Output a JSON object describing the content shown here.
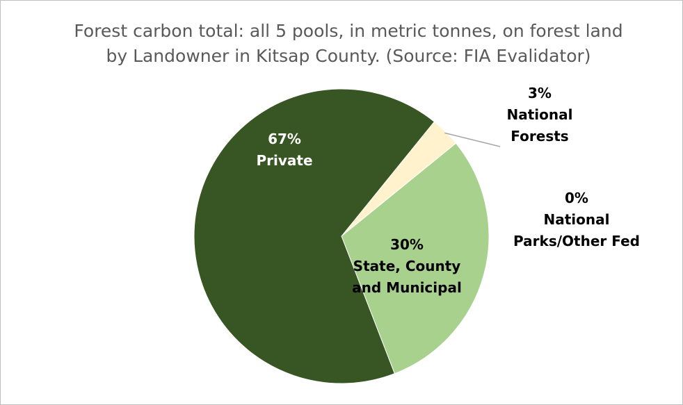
{
  "chart_data": {
    "type": "pie",
    "title_lines": [
      "Forest carbon total: all 5 pools, in metric tonnes, on forest land",
      "by Landowner in Kitsap County. (Source: FIA Evalidator)"
    ],
    "start_angle_deg": 51,
    "slices": [
      {
        "key": "national-forests",
        "name_lines": [
          "National",
          "Forests"
        ],
        "pct_label": "3%",
        "value": 3.3,
        "color": "#fff2cc"
      },
      {
        "key": "state-county-municipal",
        "name_lines": [
          "State, County",
          "and Municipal"
        ],
        "pct_label": "30%",
        "value": 30,
        "color": "#a9d18e"
      },
      {
        "key": "national-parks-other-fed",
        "name_lines": [
          "National",
          "Parks/Other Fed"
        ],
        "pct_label": "0%",
        "value": 0,
        "color": "#7f7f7f"
      },
      {
        "key": "private",
        "name_lines": [
          "Private"
        ],
        "pct_label": "67%",
        "value": 66.7,
        "color": "#375623"
      }
    ],
    "label_colors": {
      "inside_dark": "#ffffff",
      "inside_light": "#000000",
      "outside": "#000000",
      "leader": "#a6a6a6"
    }
  }
}
